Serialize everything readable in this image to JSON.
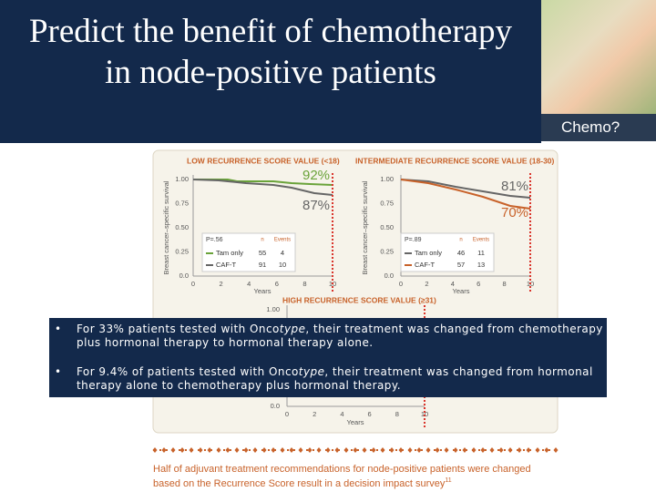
{
  "title": [
    "Predict the benefit of chemotherapy",
    "in node-positive patients"
  ],
  "photo_caption": "Chemo?",
  "figure": {
    "panels": [
      {
        "title": "LOW RECURRENCE SCORE VALUE (<18)",
        "y_label": "Breast cancer–specific survival",
        "x_label": "Years",
        "yticks": [
          "1.00",
          "0.75",
          "0.50",
          "0.25",
          "0.0"
        ],
        "xticks": [
          0,
          2,
          4,
          6,
          8,
          10
        ],
        "annotations": [
          "92%",
          "87%"
        ],
        "legend": {
          "p": "P=.56",
          "headers": [
            "n",
            "Events"
          ],
          "rows": [
            [
              "Tam only",
              "55",
              "4"
            ],
            [
              "CAF-T",
              "91",
              "10"
            ]
          ]
        }
      },
      {
        "title": "INTERMEDIATE RECURRENCE SCORE VALUE (18-30)",
        "y_label": "Breast cancer–specific survival",
        "x_label": "Years",
        "yticks": [
          "1.00",
          "0.75",
          "0.50",
          "0.25",
          "0.0"
        ],
        "xticks": [
          0,
          2,
          4,
          6,
          8,
          10
        ],
        "annotations": [
          "81%",
          "70%"
        ],
        "legend": {
          "p": "P=.89",
          "headers": [
            "n",
            "Events"
          ],
          "rows": [
            [
              "Tam only",
              "46",
              "11"
            ],
            [
              "CAF-T",
              "57",
              "13"
            ]
          ]
        }
      },
      {
        "title": "HIGH RECURRENCE SCORE VALUE (≥31)",
        "x_label": "Years",
        "yticks": [
          "1.00",
          "0.0"
        ],
        "xticks": [
          0,
          2,
          4,
          6,
          8,
          10
        ]
      }
    ]
  },
  "bullets": [
    {
      "before": "For 33% patients tested with Onco",
      "italic": "type",
      "after": ", their treatment was changed from chemotherapy plus hormonal therapy to hormonal therapy alone."
    },
    {
      "before": "For 9.4% of patients tested with Onco",
      "italic": "type",
      "after": ", their treatment was changed from hormonal therapy alone to chemotherapy plus hormonal therapy."
    }
  ],
  "footer": {
    "line1": "Half of adjuvant treatment recommendations for node-positive patients were changed",
    "line2": "based on the Recurrence Score result in a decision impact survey",
    "superscript": "11"
  }
}
